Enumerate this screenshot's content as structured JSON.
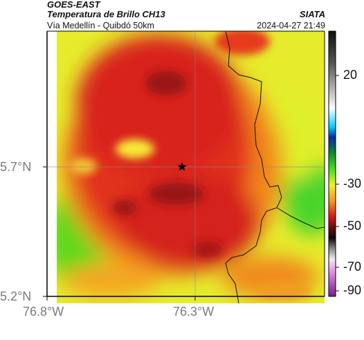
{
  "header": {
    "satellite": "GOES-EAST",
    "product": "Temperatura de Brillo CH13",
    "organization": "SIATA",
    "subtitle": "Vía Medellín - Quibdó 50km",
    "timestamp": "2024-04-27 21:49"
  },
  "axes": {
    "lat_ticks": [
      {
        "label": "5.7°N",
        "value": 5.7
      },
      {
        "label": "5.2°N",
        "value": 5.2
      }
    ],
    "lon_ticks": [
      {
        "label": "76.8°W",
        "value": -76.8
      },
      {
        "label": "76.3°W",
        "value": -76.3
      }
    ]
  },
  "colorbar": {
    "range": [
      -95,
      35
    ],
    "ticks": [
      {
        "label": "20",
        "value": 20
      },
      {
        "label": "-30",
        "value": -30
      },
      {
        "label": "-50",
        "value": -50
      },
      {
        "label": "-70",
        "value": -70
      },
      {
        "label": "-90",
        "value": -90
      }
    ]
  },
  "marker": {
    "icon": "star-icon",
    "lat": 5.7,
    "lon": -76.33
  },
  "colors": {
    "cold": "#c8141e",
    "warm": "#3ec81e",
    "neutral": "#e8f02a",
    "border": "#000000"
  }
}
